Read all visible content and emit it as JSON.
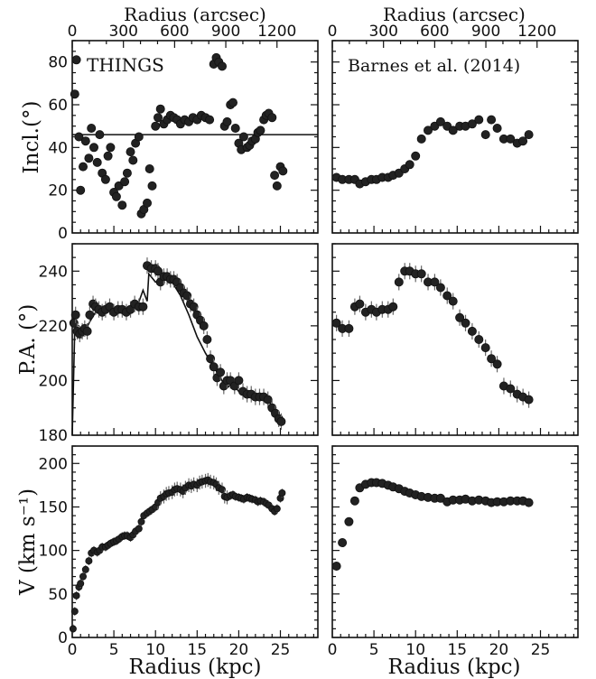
{
  "chart_data": [
    {
      "type": "scatter",
      "panel": "top-left",
      "label": "THINGS",
      "xlabel_top": "Radius (arcsec)",
      "ylabel": "Incl.(°)",
      "xlim": [
        0,
        29.5
      ],
      "ylim": [
        0,
        90
      ],
      "yticks": [
        0,
        20,
        40,
        60,
        80
      ],
      "xticks_top": [
        0,
        300,
        600,
        900,
        1200
      ],
      "hline": 46,
      "x": [
        0.3,
        0.5,
        0.8,
        1.0,
        1.3,
        1.6,
        2.0,
        2.3,
        2.6,
        3.0,
        3.3,
        3.6,
        4.0,
        4.3,
        4.6,
        5.0,
        5.3,
        5.6,
        6.0,
        6.3,
        6.6,
        7.0,
        7.3,
        7.6,
        8.0,
        8.3,
        8.6,
        9.0,
        9.3,
        9.6,
        10.0,
        10.3,
        10.6,
        11.0,
        11.4,
        11.8,
        12.2,
        12.6,
        13.0,
        13.5,
        14.0,
        14.5,
        15.0,
        15.5,
        16.0,
        16.5,
        17.0,
        17.3,
        17.6,
        18.0,
        18.3,
        18.6,
        19.0,
        19.3,
        19.6,
        20.0,
        20.3,
        20.6,
        21.0,
        21.3,
        21.6,
        22.0,
        22.3,
        22.6,
        23.0,
        23.3,
        23.6,
        24.0,
        24.3,
        24.6,
        25.0,
        25.3
      ],
      "y": [
        65,
        81,
        45,
        20,
        31,
        43,
        35,
        49,
        40,
        33,
        46,
        28,
        25,
        36,
        40,
        19,
        17,
        22,
        13,
        24,
        28,
        38,
        34,
        42,
        45,
        9,
        11,
        14,
        30,
        22,
        50,
        54,
        58,
        51,
        53,
        55,
        54,
        53,
        51,
        53,
        52,
        54,
        53,
        55,
        54,
        53,
        79,
        82,
        80,
        78,
        50,
        52,
        60,
        61,
        49,
        42,
        39,
        45,
        40,
        41,
        43,
        44,
        47,
        48,
        53,
        55,
        56,
        54,
        27,
        22,
        31,
        29
      ]
    },
    {
      "type": "scatter",
      "panel": "top-right",
      "label": "Barnes et al. (2014)",
      "xlabel_top": "Radius (arcsec)",
      "xlim": [
        0,
        29.5
      ],
      "ylim": [
        0,
        90
      ],
      "xticks_top": [
        0,
        300,
        600,
        900,
        1200
      ],
      "x": [
        0.5,
        1.2,
        2.0,
        2.7,
        3.3,
        4.0,
        4.7,
        5.3,
        6.0,
        6.7,
        7.3,
        8.0,
        8.7,
        9.3,
        10.0,
        10.7,
        11.5,
        12.3,
        13.0,
        13.8,
        14.5,
        15.3,
        16.0,
        16.8,
        17.6,
        18.4,
        19.1,
        19.8,
        20.6,
        21.4,
        22.2,
        22.9,
        23.6
      ],
      "y": [
        26,
        25,
        25,
        25,
        23,
        24,
        25,
        25,
        26,
        26,
        27,
        28,
        30,
        32,
        36,
        44,
        48,
        50,
        52,
        50,
        48,
        50,
        50,
        51,
        53,
        46,
        53,
        49,
        44,
        44,
        42,
        43,
        46
      ]
    },
    {
      "type": "scatter",
      "panel": "middle-left",
      "ylabel": "P.A. (°)",
      "xlim": [
        0,
        29.5
      ],
      "ylim": [
        180,
        250
      ],
      "yticks": [
        180,
        200,
        220,
        240
      ],
      "x": [
        0.2,
        0.4,
        0.6,
        0.9,
        1.2,
        1.5,
        1.8,
        2.1,
        2.5,
        2.8,
        3.2,
        3.6,
        4.0,
        4.5,
        5.0,
        5.5,
        6.0,
        6.5,
        7.0,
        7.5,
        8.0,
        8.5,
        9.0,
        9.5,
        10.0,
        10.3,
        10.6,
        11.0,
        11.4,
        11.8,
        12.2,
        12.6,
        13.0,
        13.4,
        13.8,
        14.2,
        14.6,
        15.0,
        15.4,
        15.8,
        16.2,
        16.6,
        17.0,
        17.4,
        17.8,
        18.2,
        18.6,
        19.0,
        19.5,
        20.0,
        20.5,
        21.0,
        21.5,
        22.0,
        22.5,
        23.0,
        23.5,
        24.0,
        24.4,
        24.8,
        25.1
      ],
      "y": [
        221,
        224,
        218,
        217,
        218,
        219,
        218,
        224,
        228,
        227,
        226,
        225,
        226,
        227,
        225,
        226,
        226,
        225,
        226,
        228,
        227,
        227,
        242,
        241,
        241,
        240,
        236,
        238,
        238,
        237,
        237,
        236,
        234,
        232,
        231,
        228,
        227,
        224,
        222,
        220,
        215,
        208,
        205,
        201,
        203,
        198,
        200,
        200,
        198,
        200,
        196,
        195,
        195,
        194,
        194,
        194,
        193,
        190,
        188,
        186,
        185
      ],
      "model": [
        [
          0.0,
          180
        ],
        [
          0.3,
          219
        ],
        [
          0.8,
          217
        ],
        [
          1.5,
          218
        ],
        [
          2.2,
          222
        ],
        [
          3.0,
          226
        ],
        [
          4.0,
          226
        ],
        [
          5.0,
          226
        ],
        [
          6.0,
          226
        ],
        [
          7.0,
          226
        ],
        [
          7.8,
          227
        ],
        [
          8.5,
          233
        ],
        [
          9.0,
          229
        ],
        [
          9.2,
          239
        ],
        [
          10.0,
          236
        ],
        [
          11.0,
          237
        ],
        [
          12.0,
          236
        ],
        [
          13.0,
          231
        ],
        [
          14.0,
          224
        ],
        [
          15.0,
          216
        ],
        [
          16.0,
          210
        ],
        [
          17.0,
          205
        ],
        [
          17.8,
          201
        ],
        [
          18.5,
          197
        ],
        [
          19.2,
          199
        ],
        [
          20.0,
          196
        ],
        [
          21.0,
          195
        ],
        [
          22.0,
          194
        ],
        [
          23.0,
          194
        ],
        [
          24.0,
          191
        ],
        [
          25.0,
          186
        ]
      ]
    },
    {
      "type": "scatter",
      "panel": "middle-right",
      "xlim": [
        0,
        29.5
      ],
      "ylim": [
        180,
        250
      ],
      "x": [
        0.5,
        1.2,
        2.0,
        2.7,
        3.3,
        4.0,
        4.7,
        5.3,
        6.0,
        6.7,
        7.3,
        8.0,
        8.7,
        9.3,
        10.0,
        10.7,
        11.5,
        12.3,
        13.0,
        13.8,
        14.5,
        15.3,
        16.0,
        16.8,
        17.6,
        18.4,
        19.1,
        19.8,
        20.6,
        21.4,
        22.2,
        22.9,
        23.6
      ],
      "y": [
        221,
        219,
        219,
        227,
        228,
        225,
        226,
        225,
        226,
        226,
        227,
        236,
        240,
        240,
        239,
        239,
        236,
        236,
        234,
        231,
        229,
        223,
        221,
        218,
        215,
        212,
        208,
        206,
        198,
        197,
        195,
        194,
        193
      ]
    },
    {
      "type": "scatter",
      "panel": "bottom-left",
      "ylabel": "V (km s⁻¹)",
      "xlabel": "Radius (kpc)",
      "xlim": [
        0,
        29.5
      ],
      "ylim": [
        0,
        220
      ],
      "yticks": [
        0,
        50,
        100,
        150,
        200
      ],
      "xticks": [
        0,
        5,
        10,
        15,
        20,
        25
      ],
      "x": [
        0.1,
        0.3,
        0.5,
        0.8,
        1.0,
        1.3,
        1.6,
        2.0,
        2.3,
        2.6,
        3.0,
        3.3,
        3.6,
        4.0,
        4.3,
        4.6,
        5.0,
        5.3,
        5.6,
        6.0,
        6.3,
        6.6,
        7.0,
        7.3,
        7.6,
        8.0,
        8.3,
        8.6,
        9.0,
        9.3,
        9.6,
        10.0,
        10.3,
        10.6,
        11.0,
        11.3,
        11.6,
        12.0,
        12.3,
        12.6,
        13.0,
        13.3,
        13.6,
        14.0,
        14.3,
        14.6,
        15.0,
        15.3,
        15.6,
        16.0,
        16.3,
        16.6,
        17.0,
        17.3,
        17.6,
        18.0,
        18.3,
        18.6,
        19.0,
        19.3,
        19.6,
        20.0,
        20.3,
        20.6,
        21.0,
        21.3,
        21.6,
        22.0,
        22.3,
        22.6,
        23.0,
        23.3,
        23.6,
        24.0,
        24.3,
        24.6,
        25.0,
        25.2
      ],
      "y": [
        10,
        30,
        48,
        58,
        62,
        70,
        78,
        88,
        97,
        100,
        98,
        100,
        104,
        104,
        106,
        108,
        110,
        111,
        113,
        116,
        117,
        117,
        115,
        118,
        122,
        125,
        133,
        140,
        143,
        145,
        147,
        150,
        155,
        160,
        162,
        165,
        166,
        167,
        170,
        171,
        170,
        168,
        172,
        175,
        174,
        176,
        175,
        178,
        179,
        180,
        181,
        179,
        178,
        176,
        172,
        170,
        162,
        161,
        163,
        164,
        162,
        161,
        160,
        159,
        161,
        160,
        159,
        158,
        156,
        157,
        156,
        154,
        152,
        148,
        145,
        148,
        160,
        166
      ]
    },
    {
      "type": "scatter",
      "panel": "bottom-right",
      "xlabel": "Radius (kpc)",
      "xlim": [
        0,
        29.5
      ],
      "ylim": [
        0,
        220
      ],
      "xticks": [
        0,
        5,
        10,
        15,
        20,
        25
      ],
      "x": [
        0.5,
        1.2,
        2.0,
        2.7,
        3.3,
        4.0,
        4.7,
        5.3,
        6.0,
        6.7,
        7.3,
        8.0,
        8.7,
        9.3,
        10.0,
        10.7,
        11.5,
        12.3,
        13.0,
        13.8,
        14.5,
        15.3,
        16.0,
        16.8,
        17.6,
        18.4,
        19.1,
        19.8,
        20.6,
        21.4,
        22.2,
        22.9,
        23.6
      ],
      "y": [
        82,
        109,
        133,
        157,
        172,
        176,
        178,
        178,
        177,
        175,
        173,
        171,
        168,
        166,
        164,
        162,
        161,
        160,
        160,
        156,
        158,
        158,
        159,
        157,
        158,
        157,
        155,
        156,
        156,
        157,
        157,
        157,
        155
      ]
    }
  ]
}
